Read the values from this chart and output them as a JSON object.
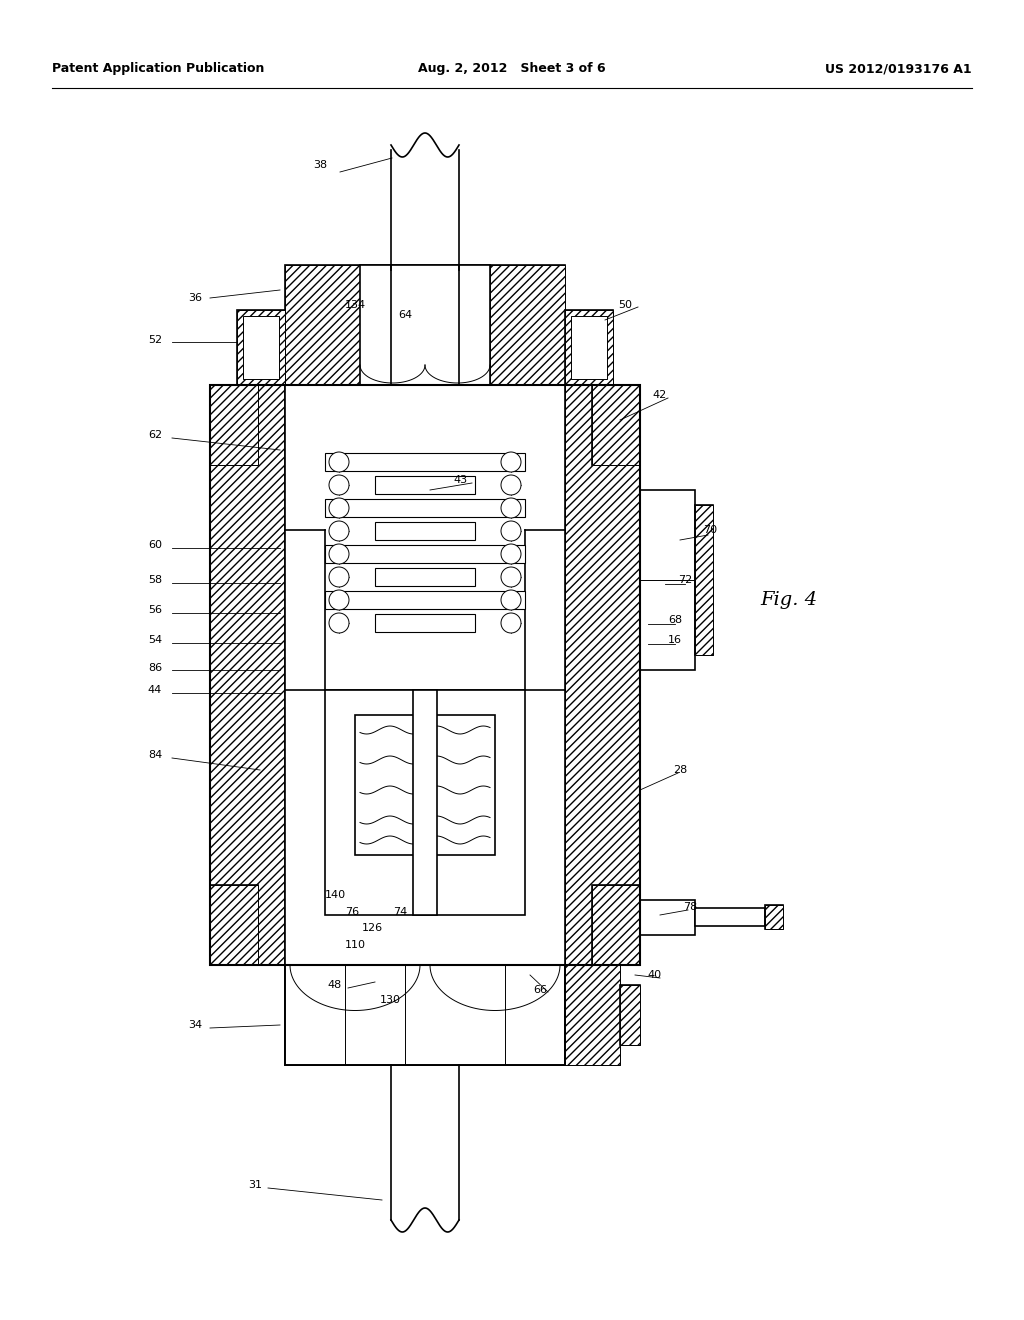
{
  "background_color": "#ffffff",
  "line_color": "#000000",
  "header": {
    "left": "Patent Application Publication",
    "center": "Aug. 2, 2012   Sheet 3 of 6",
    "right": "US 2012/0193176 A1"
  },
  "fig_label": "Fig. 4"
}
